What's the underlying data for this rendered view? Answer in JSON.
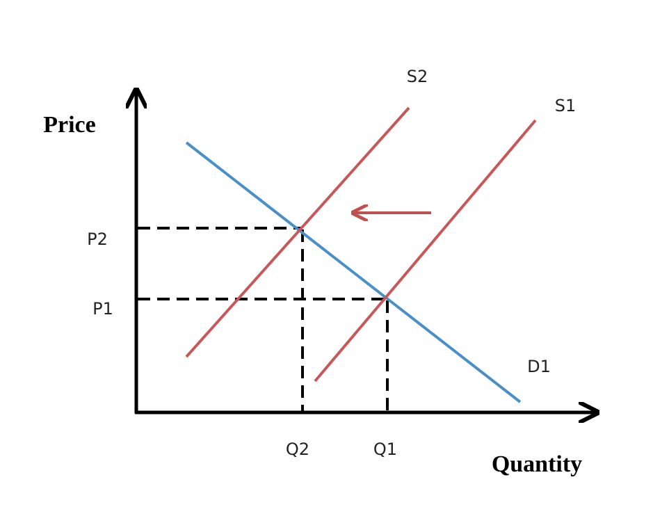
{
  "axes": {
    "y_label": "Price",
    "x_label": "Quantity"
  },
  "curves": [
    {
      "label": "S2"
    },
    {
      "label": "S1"
    },
    {
      "label": "D1"
    }
  ],
  "prices": [
    "P2",
    "P1"
  ],
  "quantities": [
    "Q2",
    "Q1"
  ]
}
